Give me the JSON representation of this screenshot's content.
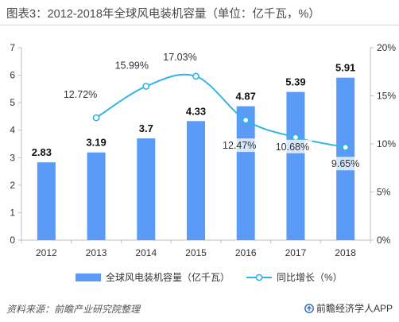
{
  "header": {
    "title": "图表3：2012-2018年全球风电装机容量（单位：亿千瓦，%）"
  },
  "chart_data": {
    "type": "bar",
    "categories": [
      "2012",
      "2013",
      "2014",
      "2015",
      "2016",
      "2017",
      "2018"
    ],
    "series": [
      {
        "name": "全球风电装机容量（亿千瓦）",
        "type": "bar",
        "axis": "left",
        "values": [
          2.83,
          3.19,
          3.7,
          4.33,
          4.87,
          5.39,
          5.91
        ],
        "labels": [
          "2.83",
          "3.19",
          "3.7",
          "4.33",
          "4.87",
          "5.39",
          "5.91"
        ],
        "color": "#5b9bf8"
      },
      {
        "name": "同比增长（%）",
        "type": "line",
        "axis": "right",
        "values": [
          null,
          12.72,
          15.99,
          17.03,
          12.47,
          10.68,
          9.65
        ],
        "labels": [
          "",
          "12.72%",
          "15.99%",
          "17.03%",
          "12.47%",
          "10.68%",
          "9.65%"
        ],
        "color": "#32b4e6"
      }
    ],
    "y_left": {
      "ylim": [
        0,
        7
      ],
      "ticks": [
        "0",
        "1",
        "2",
        "3",
        "4",
        "5",
        "6",
        "7"
      ]
    },
    "y_right": {
      "ylim": [
        0,
        20
      ],
      "ticks": [
        "0%",
        "5%",
        "10%",
        "15%",
        "20%"
      ]
    },
    "grid": false,
    "legend_position": "bottom"
  },
  "footer": {
    "source": "资料来源：前瞻产业研究院整理",
    "brand": "前瞻经济学人APP"
  },
  "colors": {
    "bar": "#5b9bf8",
    "line": "#32b4e6",
    "axis": "#bfbfbf",
    "text": "#333333"
  },
  "icons": {
    "brand": "brand-logo-icon"
  }
}
